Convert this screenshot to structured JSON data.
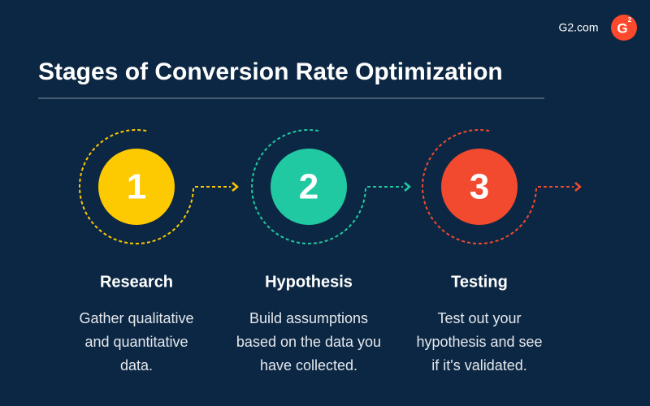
{
  "brand": {
    "site": "G2.com",
    "logo_letter": "G",
    "logo_sup": "2"
  },
  "header": {
    "title": "Stages of Conversion Rate Optimization"
  },
  "stages": [
    {
      "number": "1",
      "title": "Research",
      "color": "#fdc900",
      "lines": [
        "Gather qualitative",
        "and quantitative",
        "data."
      ]
    },
    {
      "number": "2",
      "title": "Hypothesis",
      "color": "#21c9a2",
      "lines": [
        "Build assumptions",
        "based on the data you",
        "have collected."
      ]
    },
    {
      "number": "3",
      "title": "Testing",
      "color": "#f24a2f",
      "lines": [
        "Test out your",
        "hypothesis and see",
        "if it's validated."
      ]
    }
  ]
}
